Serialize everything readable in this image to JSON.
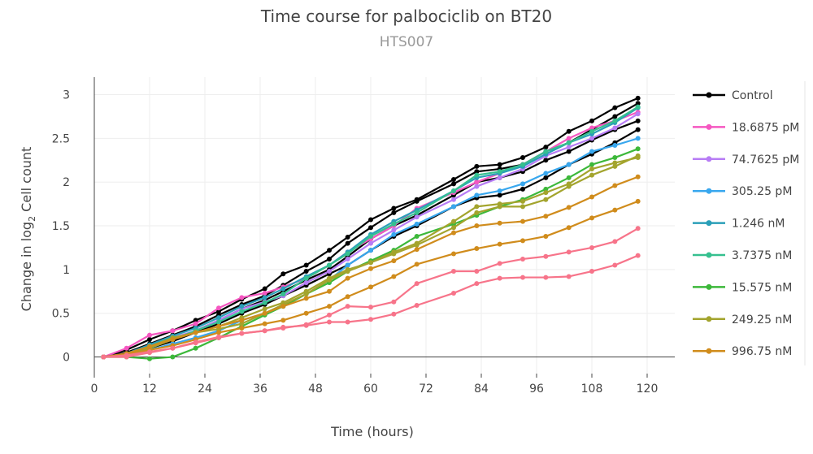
{
  "chart_data": {
    "type": "line",
    "title": "Time course for palbociclib on BT20",
    "subtitle": "HTS007",
    "xlabel": "Time (hours)",
    "ylabel_main": "Change in log",
    "ylabel_sub": "2",
    "ylabel_tail": " Cell count",
    "xlim": [
      0,
      126
    ],
    "ylim": [
      -0.19,
      3.2
    ],
    "xticks": [
      0,
      12,
      24,
      36,
      48,
      60,
      72,
      84,
      96,
      108,
      120
    ],
    "yticks": [
      0,
      0.5,
      1,
      1.5,
      2,
      2.5,
      3
    ],
    "ytick_labels": [
      "0",
      "0.5",
      "1",
      "1.5",
      "2",
      "2.5",
      "3"
    ],
    "grid": true,
    "legend_placement": "right",
    "x": [
      2,
      7,
      12,
      17,
      22,
      27,
      32,
      37,
      41,
      46,
      51,
      55,
      60,
      65,
      70,
      78,
      83,
      88,
      93,
      98,
      103,
      108,
      113,
      118
    ],
    "series": [
      {
        "name": "Control",
        "color": "#000000",
        "legend": true,
        "values": [
          0,
          0.08,
          0.2,
          0.3,
          0.42,
          0.52,
          0.66,
          0.78,
          0.95,
          1.05,
          1.22,
          1.37,
          1.57,
          1.7,
          1.8,
          2.03,
          2.18,
          2.2,
          2.28,
          2.4,
          2.58,
          2.7,
          2.85,
          2.96
        ]
      },
      {
        "color": "#000000",
        "values": [
          0,
          0.05,
          0.15,
          0.25,
          0.35,
          0.48,
          0.6,
          0.7,
          0.82,
          0.98,
          1.12,
          1.3,
          1.48,
          1.65,
          1.78,
          1.98,
          2.12,
          2.15,
          2.2,
          2.35,
          2.45,
          2.6,
          2.75,
          2.9
        ]
      },
      {
        "color": "#000000",
        "values": [
          0,
          0.03,
          0.12,
          0.2,
          0.3,
          0.42,
          0.55,
          0.65,
          0.75,
          0.88,
          1.0,
          1.15,
          1.35,
          1.5,
          1.62,
          1.85,
          2.0,
          2.05,
          2.12,
          2.25,
          2.35,
          2.48,
          2.6,
          2.7
        ]
      },
      {
        "color": "#000000",
        "values": [
          0,
          0.02,
          0.1,
          0.18,
          0.28,
          0.38,
          0.5,
          0.6,
          0.7,
          0.82,
          0.95,
          1.05,
          1.22,
          1.38,
          1.5,
          1.72,
          1.82,
          1.85,
          1.92,
          2.05,
          2.2,
          2.32,
          2.45,
          2.6
        ]
      },
      {
        "name": "18.6875 pM",
        "color": "#f557c1",
        "legend": true,
        "values": [
          0,
          0.1,
          0.25,
          0.3,
          0.38,
          0.56,
          0.68,
          0.73,
          0.8,
          0.9,
          1.05,
          1.2,
          1.35,
          1.5,
          1.7,
          1.88,
          2.0,
          2.1,
          2.2,
          2.35,
          2.5,
          2.62,
          2.7,
          2.8
        ]
      },
      {
        "name": "74.7625 pM",
        "color": "#b77cf5",
        "legend": true,
        "values": [
          0,
          0.03,
          0.12,
          0.22,
          0.3,
          0.42,
          0.55,
          0.63,
          0.7,
          0.85,
          0.98,
          1.12,
          1.3,
          1.45,
          1.6,
          1.8,
          1.95,
          2.05,
          2.15,
          2.3,
          2.4,
          2.5,
          2.62,
          2.78
        ]
      },
      {
        "name": "305.25 pM",
        "color": "#38a7ee",
        "legend": true,
        "values": [
          0,
          0.02,
          0.08,
          0.15,
          0.22,
          0.3,
          0.42,
          0.5,
          0.58,
          0.72,
          0.88,
          1.05,
          1.22,
          1.4,
          1.52,
          1.72,
          1.85,
          1.9,
          1.98,
          2.1,
          2.2,
          2.35,
          2.42,
          2.5
        ]
      },
      {
        "name": "1.246 nM",
        "color": "#2a9fb8",
        "legend": true,
        "values": [
          0,
          0.04,
          0.14,
          0.24,
          0.33,
          0.45,
          0.58,
          0.68,
          0.78,
          0.92,
          1.05,
          1.2,
          1.4,
          1.55,
          1.68,
          1.9,
          2.05,
          2.1,
          2.18,
          2.32,
          2.45,
          2.55,
          2.68,
          2.85
        ]
      },
      {
        "name": "3.7375 nM",
        "color": "#36c08f",
        "legend": true,
        "values": [
          0,
          0.03,
          0.1,
          0.2,
          0.3,
          0.4,
          0.52,
          0.62,
          0.72,
          0.9,
          1.05,
          1.18,
          1.38,
          1.52,
          1.65,
          1.9,
          2.08,
          2.12,
          2.2,
          2.35,
          2.45,
          2.58,
          2.7,
          2.86
        ]
      },
      {
        "name": "15.575 nM",
        "color": "#3cb83a",
        "legend": true,
        "values": [
          0,
          0.0,
          -0.02,
          0.0,
          0.1,
          0.22,
          0.35,
          0.48,
          0.58,
          0.72,
          0.85,
          0.98,
          1.1,
          1.22,
          1.38,
          1.52,
          1.62,
          1.72,
          1.8,
          1.92,
          2.05,
          2.2,
          2.28,
          2.38
        ]
      },
      {
        "name": "249.25 nM",
        "color": "#a3a42d",
        "legend": true,
        "values": [
          0,
          0.02,
          0.1,
          0.2,
          0.28,
          0.32,
          0.38,
          0.5,
          0.6,
          0.72,
          0.88,
          0.98,
          1.08,
          1.18,
          1.28,
          1.48,
          1.65,
          1.72,
          1.72,
          1.8,
          1.95,
          2.08,
          2.18,
          2.3
        ]
      },
      {
        "color": "#a3a42d",
        "values": [
          0,
          0.03,
          0.12,
          0.22,
          0.28,
          0.35,
          0.45,
          0.55,
          0.62,
          0.75,
          0.9,
          1.0,
          1.08,
          1.2,
          1.3,
          1.55,
          1.72,
          1.75,
          1.78,
          1.88,
          1.98,
          2.15,
          2.22,
          2.28
        ]
      },
      {
        "name": "996.75 nM",
        "color": "#d08c1c",
        "legend": true,
        "values": [
          0,
          0.04,
          0.12,
          0.2,
          0.28,
          0.35,
          0.42,
          0.5,
          0.58,
          0.67,
          0.75,
          0.9,
          1.01,
          1.1,
          1.23,
          1.42,
          1.5,
          1.53,
          1.55,
          1.61,
          1.71,
          1.83,
          1.96,
          2.06
        ]
      },
      {
        "color": "#d08c1c",
        "values": [
          0,
          0.03,
          0.08,
          0.13,
          0.2,
          0.28,
          0.33,
          0.38,
          0.42,
          0.5,
          0.58,
          0.69,
          0.8,
          0.92,
          1.06,
          1.18,
          1.24,
          1.29,
          1.33,
          1.38,
          1.48,
          1.59,
          1.68,
          1.78
        ]
      },
      {
        "color": "#f7748a",
        "values": [
          0,
          0.02,
          0.06,
          0.1,
          0.16,
          0.22,
          0.27,
          0.3,
          0.33,
          0.37,
          0.48,
          0.58,
          0.57,
          0.63,
          0.84,
          0.98,
          0.98,
          1.07,
          1.12,
          1.15,
          1.2,
          1.25,
          1.32,
          1.47
        ]
      },
      {
        "color": "#f7748a",
        "values": [
          0,
          0.0,
          0.05,
          0.1,
          0.17,
          0.23,
          0.27,
          0.3,
          0.34,
          0.36,
          0.4,
          0.4,
          0.43,
          0.49,
          0.59,
          0.73,
          0.84,
          0.9,
          0.91,
          0.91,
          0.92,
          0.98,
          1.05,
          1.16
        ]
      }
    ]
  }
}
